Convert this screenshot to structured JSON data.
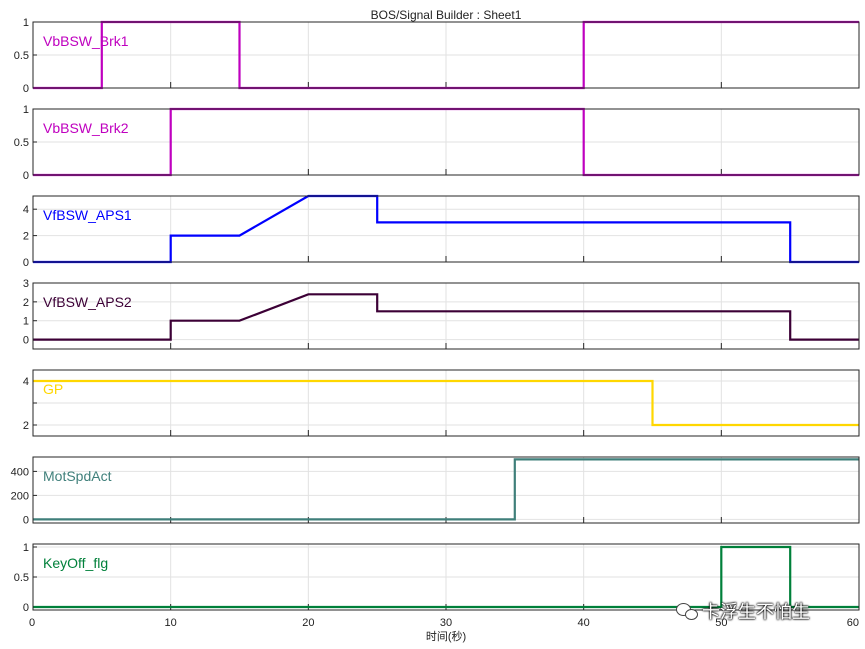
{
  "figure": {
    "title": "BOS/Signal Builder : Sheet1",
    "xlabel": "时间(秒)"
  },
  "watermark": {
    "text": "卡浮生不怕生",
    "icon": "wechat-icon"
  },
  "chart_data": [
    {
      "type": "line",
      "name": "VbBSW_Brk1",
      "color": "#bf00bf",
      "xlim": [
        0,
        60
      ],
      "ylim": [
        0,
        1
      ],
      "yticks": [
        0,
        0.5,
        1
      ],
      "ytick_labels": [
        "0",
        "0.5",
        "1"
      ],
      "x": [
        0,
        5,
        5,
        15,
        15,
        40,
        40,
        60
      ],
      "y": [
        0,
        0,
        1,
        1,
        0,
        0,
        1,
        1
      ]
    },
    {
      "type": "line",
      "name": "VbBSW_Brk2",
      "color": "#bf00bf",
      "xlim": [
        0,
        60
      ],
      "ylim": [
        0,
        1
      ],
      "yticks": [
        0,
        0.5,
        1
      ],
      "ytick_labels": [
        "0",
        "0.5",
        "1"
      ],
      "x": [
        0,
        10,
        10,
        40,
        40,
        60
      ],
      "y": [
        0,
        0,
        1,
        1,
        0,
        0
      ]
    },
    {
      "type": "line",
      "name": "VfBSW_APS1",
      "color": "#0000ff",
      "xlim": [
        0,
        60
      ],
      "ylim": [
        0,
        5
      ],
      "yticks": [
        0,
        2,
        4
      ],
      "ytick_labels": [
        "0",
        "2",
        "4"
      ],
      "x": [
        0,
        10,
        10,
        15,
        20,
        25,
        25,
        55,
        55,
        60
      ],
      "y": [
        0,
        0,
        2,
        2,
        5,
        5,
        3,
        3,
        0,
        0
      ]
    },
    {
      "type": "line",
      "name": "VfBSW_APS2",
      "color": "#3c0036",
      "xlim": [
        0,
        60
      ],
      "ylim": [
        -0.5,
        3
      ],
      "yticks": [
        0,
        1,
        2,
        3
      ],
      "ytick_labels": [
        "0",
        "1",
        "2",
        "3"
      ],
      "x": [
        0,
        10,
        10,
        15,
        20,
        25,
        25,
        55,
        55,
        60
      ],
      "y": [
        0,
        0,
        1,
        1,
        2.4,
        2.4,
        1.5,
        1.5,
        0,
        0
      ]
    },
    {
      "type": "line",
      "name": "GP",
      "color": "#ffd700",
      "xlim": [
        0,
        60
      ],
      "ylim": [
        1.5,
        4.5
      ],
      "yticks": [
        2,
        3,
        4
      ],
      "ytick_labels": [
        "2",
        "",
        "4"
      ],
      "x": [
        0,
        45,
        45,
        60
      ],
      "y": [
        4,
        4,
        2,
        2
      ]
    },
    {
      "type": "line",
      "name": "MotSpdAct",
      "color": "#3f7f7a",
      "xlim": [
        0,
        60
      ],
      "ylim": [
        -30,
        520
      ],
      "yticks": [
        0,
        200,
        400
      ],
      "ytick_labels": [
        "0",
        "200",
        "400"
      ],
      "x": [
        0,
        35,
        35,
        60
      ],
      "y": [
        0,
        0,
        500,
        500
      ]
    },
    {
      "type": "line",
      "name": "KeyOff_flg",
      "color": "#00803a",
      "xlim": [
        0,
        60
      ],
      "ylim": [
        -0.05,
        1.05
      ],
      "yticks": [
        0,
        0.5,
        1
      ],
      "ytick_labels": [
        "0",
        "0.5",
        "1"
      ],
      "x": [
        0,
        50,
        50,
        55,
        55,
        60
      ],
      "y": [
        0,
        0,
        1,
        1,
        0,
        0
      ]
    }
  ],
  "xticks": [
    0,
    10,
    20,
    30,
    40,
    50,
    60
  ],
  "xtick_labels": [
    "0",
    "10",
    "20",
    "30",
    "40",
    "50",
    "60"
  ]
}
